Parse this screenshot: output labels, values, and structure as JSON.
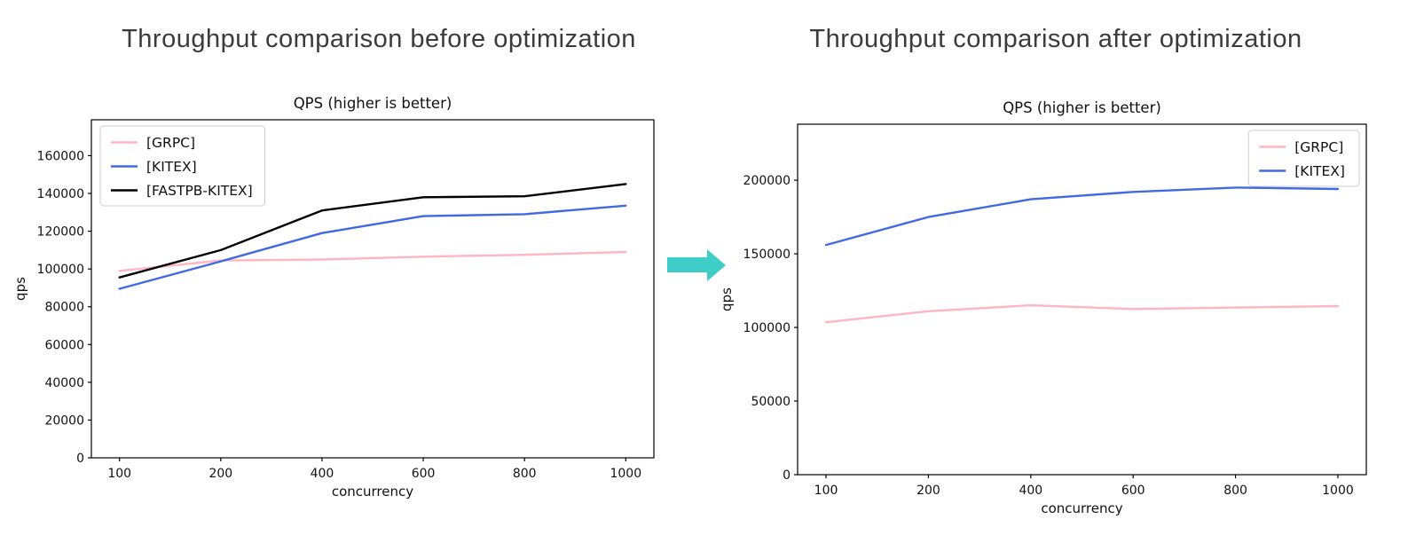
{
  "page": {
    "background": "#ffffff"
  },
  "arrow": {
    "color": "#3fcdc7",
    "direction": "right"
  },
  "chart_data": [
    {
      "type": "line",
      "figure_title": "Throughput comparison before optimization",
      "title": "QPS (higher is better)",
      "xlabel": "concurrency",
      "ylabel": "qps",
      "categories": [
        "100",
        "200",
        "400",
        "600",
        "800",
        "1000"
      ],
      "series": [
        {
          "name": "[GRPC]",
          "color": "#ffb6c1",
          "values": [
            99000,
            104500,
            105000,
            106500,
            107500,
            109000
          ]
        },
        {
          "name": "[KITEX]",
          "color": "#4169e1",
          "values": [
            89500,
            104000,
            119000,
            128000,
            129000,
            133500
          ]
        },
        {
          "name": "[FASTPB-KITEX]",
          "color": "#000000",
          "values": [
            95500,
            110000,
            131000,
            138000,
            138500,
            145000
          ]
        }
      ],
      "ylim": [
        0,
        179000
      ],
      "yticks": [
        0,
        20000,
        40000,
        60000,
        80000,
        100000,
        120000,
        140000,
        160000
      ],
      "legend_position": "upper-left",
      "grid": false
    },
    {
      "type": "line",
      "figure_title": "Throughput comparison after optimization",
      "title": "QPS (higher is better)",
      "xlabel": "concurrency",
      "ylabel": "qps",
      "categories": [
        "100",
        "200",
        "400",
        "600",
        "800",
        "1000"
      ],
      "series": [
        {
          "name": "[GRPC]",
          "color": "#ffb6c1",
          "values": [
            103500,
            111000,
            115000,
            112500,
            113500,
            114500
          ]
        },
        {
          "name": "[KITEX]",
          "color": "#4169e1",
          "values": [
            156000,
            175000,
            187000,
            192000,
            195000,
            194000
          ]
        }
      ],
      "ylim": [
        0,
        238000
      ],
      "yticks": [
        0,
        50000,
        100000,
        150000,
        200000
      ],
      "legend_position": "upper-right",
      "grid": false
    }
  ]
}
